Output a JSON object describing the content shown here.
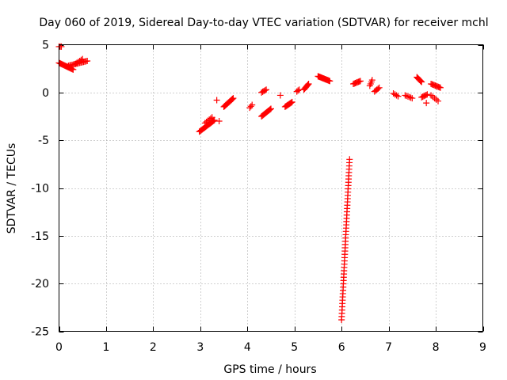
{
  "chart_data": {
    "type": "scatter",
    "title": "Day 060 of 2019, Sidereal Day-to-day VTEC variation (SDTVAR) for receiver mchl",
    "xlabel": "GPS time / hours",
    "ylabel": "SDTVAR / TECUs",
    "xlim": [
      0,
      9
    ],
    "ylim": [
      -25,
      5
    ],
    "x_ticks": [
      0,
      1,
      2,
      3,
      4,
      5,
      6,
      7,
      8,
      9
    ],
    "y_ticks": [
      5,
      0,
      -5,
      -10,
      -15,
      -20,
      -25
    ],
    "grid": true,
    "marker": "+",
    "color": "#ff0000",
    "segments": [
      {
        "x0": 0.0,
        "y0": 4.8,
        "x1": 0.05,
        "y1": 4.8,
        "n": 3
      },
      {
        "x0": 0.0,
        "y0": 3.1,
        "x1": 0.3,
        "y1": 2.4,
        "n": 18
      },
      {
        "x0": 0.2,
        "y0": 2.8,
        "x1": 0.6,
        "y1": 3.3,
        "n": 16
      },
      {
        "x0": 0.35,
        "y0": 3.0,
        "x1": 0.5,
        "y1": 3.5,
        "n": 6
      },
      {
        "x0": 2.98,
        "y0": -4.1,
        "x1": 3.3,
        "y1": -2.9,
        "n": 18
      },
      {
        "x0": 3.1,
        "y0": -3.2,
        "x1": 3.25,
        "y1": -2.6,
        "n": 6
      },
      {
        "x0": 3.35,
        "y0": -0.8,
        "x1": 3.35,
        "y1": -0.8,
        "n": 1
      },
      {
        "x0": 3.4,
        "y0": -3.0,
        "x1": 3.4,
        "y1": -3.0,
        "n": 1
      },
      {
        "x0": 3.5,
        "y0": -1.5,
        "x1": 3.7,
        "y1": -0.6,
        "n": 14
      },
      {
        "x0": 4.05,
        "y0": -1.6,
        "x1": 4.1,
        "y1": -1.3,
        "n": 3
      },
      {
        "x0": 4.3,
        "y0": -2.5,
        "x1": 4.5,
        "y1": -1.7,
        "n": 12
      },
      {
        "x0": 4.3,
        "y0": 0.0,
        "x1": 4.4,
        "y1": 0.3,
        "n": 5
      },
      {
        "x0": 4.7,
        "y0": -0.3,
        "x1": 4.7,
        "y1": -0.3,
        "n": 1
      },
      {
        "x0": 4.8,
        "y0": -1.5,
        "x1": 4.95,
        "y1": -1.0,
        "n": 10
      },
      {
        "x0": 5.05,
        "y0": 0.1,
        "x1": 5.1,
        "y1": 0.3,
        "n": 3
      },
      {
        "x0": 5.2,
        "y0": 0.3,
        "x1": 5.3,
        "y1": 0.9,
        "n": 8
      },
      {
        "x0": 5.5,
        "y0": 1.7,
        "x1": 5.75,
        "y1": 1.2,
        "n": 16
      },
      {
        "x0": 6.0,
        "y0": -23.8,
        "x1": 6.17,
        "y1": -7.0,
        "n": 50
      },
      {
        "x0": 6.25,
        "y0": 0.9,
        "x1": 6.4,
        "y1": 1.2,
        "n": 8
      },
      {
        "x0": 6.6,
        "y0": 0.7,
        "x1": 6.65,
        "y1": 1.3,
        "n": 4
      },
      {
        "x0": 6.7,
        "y0": 0.1,
        "x1": 6.8,
        "y1": 0.5,
        "n": 5
      },
      {
        "x0": 7.1,
        "y0": -0.1,
        "x1": 7.2,
        "y1": -0.4,
        "n": 4
      },
      {
        "x0": 7.35,
        "y0": -0.3,
        "x1": 7.5,
        "y1": -0.6,
        "n": 6
      },
      {
        "x0": 7.6,
        "y0": 1.6,
        "x1": 7.7,
        "y1": 1.1,
        "n": 8
      },
      {
        "x0": 7.7,
        "y0": -0.5,
        "x1": 7.82,
        "y1": -0.2,
        "n": 6
      },
      {
        "x0": 7.8,
        "y0": -1.1,
        "x1": 7.8,
        "y1": -1.1,
        "n": 1
      },
      {
        "x0": 7.9,
        "y0": -0.3,
        "x1": 8.05,
        "y1": -0.9,
        "n": 5
      },
      {
        "x0": 7.9,
        "y0": 0.9,
        "x1": 8.1,
        "y1": 0.5,
        "n": 10
      }
    ]
  }
}
